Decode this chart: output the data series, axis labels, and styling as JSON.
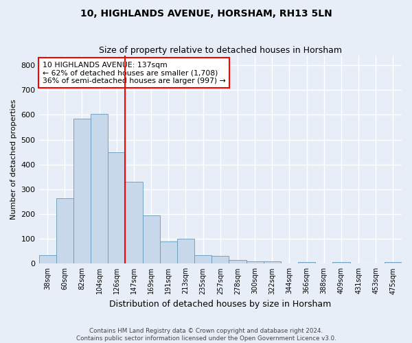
{
  "title": "10, HIGHLANDS AVENUE, HORSHAM, RH13 5LN",
  "subtitle": "Size of property relative to detached houses in Horsham",
  "xlabel": "Distribution of detached houses by size in Horsham",
  "ylabel": "Number of detached properties",
  "categories": [
    "38sqm",
    "60sqm",
    "82sqm",
    "104sqm",
    "126sqm",
    "147sqm",
    "169sqm",
    "191sqm",
    "213sqm",
    "235sqm",
    "257sqm",
    "278sqm",
    "300sqm",
    "322sqm",
    "344sqm",
    "366sqm",
    "388sqm",
    "409sqm",
    "431sqm",
    "453sqm",
    "475sqm"
  ],
  "values": [
    35,
    265,
    585,
    605,
    450,
    330,
    195,
    90,
    100,
    35,
    30,
    15,
    10,
    8,
    0,
    5,
    0,
    5,
    0,
    0,
    5
  ],
  "bar_color": "#c8d8eb",
  "bar_edge_color": "#6699bb",
  "vline_color": "red",
  "vline_x_index": 5,
  "annotation_text": "10 HIGHLANDS AVENUE: 137sqm\n← 62% of detached houses are smaller (1,708)\n36% of semi-detached houses are larger (997) →",
  "annotation_box_color": "white",
  "annotation_box_edge_color": "red",
  "ylim": [
    0,
    840
  ],
  "yticks": [
    0,
    100,
    200,
    300,
    400,
    500,
    600,
    700,
    800
  ],
  "footer_line1": "Contains HM Land Registry data © Crown copyright and database right 2024.",
  "footer_line2": "Contains public sector information licensed under the Open Government Licence v3.0.",
  "bg_color": "#e8eef8",
  "plot_bg_color": "#e8eef8",
  "grid_color": "white",
  "figwidth": 6.0,
  "figheight": 5.0,
  "dpi": 100
}
